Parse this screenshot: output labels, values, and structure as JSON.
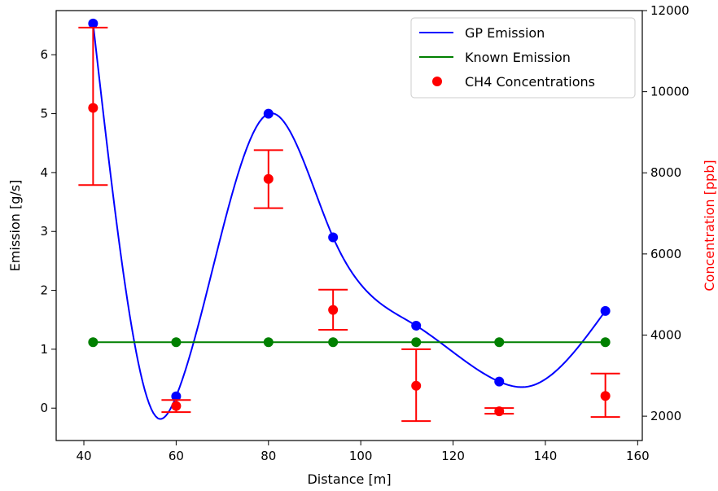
{
  "chart_data": {
    "type": "line",
    "xlabel": "Distance [m]",
    "ylabel_left": "Emission [g/s]",
    "ylabel_right": "Concentration [ppb]",
    "ylabel_right_color": "#ff0000",
    "xlim": [
      34,
      161
    ],
    "ylim_left": [
      -0.55,
      6.75
    ],
    "ylim_right": [
      1400,
      12000
    ],
    "x_ticks": [
      40,
      60,
      80,
      100,
      120,
      140,
      160
    ],
    "y_left_ticks": [
      0,
      1,
      2,
      3,
      4,
      5,
      6
    ],
    "y_right_ticks": [
      2000,
      4000,
      6000,
      8000,
      10000,
      12000
    ],
    "grid": false,
    "legend_position": "top-right",
    "series": [
      {
        "name": "GP Emission",
        "kind": "smooth-line-with-markers",
        "axis": "left",
        "color": "#0000ff",
        "x": [
          42,
          60,
          80,
          94,
          112,
          130,
          153
        ],
        "y": [
          6.53,
          0.2,
          5.0,
          2.9,
          1.4,
          0.45,
          1.65
        ],
        "curve_min": {
          "x": 56,
          "y": -0.17
        },
        "curve_min_between_last": {
          "x": 136.5,
          "y": 0.37
        }
      },
      {
        "name": "Known Emission",
        "kind": "line-with-markers",
        "axis": "left",
        "color": "#008000",
        "x": [
          42,
          60,
          80,
          94,
          112,
          130,
          153
        ],
        "y": [
          1.12,
          1.12,
          1.12,
          1.12,
          1.12,
          1.12,
          1.12
        ]
      },
      {
        "name": "CH4 Concentrations",
        "kind": "scatter-with-errorbars",
        "axis": "right",
        "color": "#ff0000",
        "x": [
          42,
          60,
          80,
          94,
          112,
          130,
          153
        ],
        "y": [
          9600,
          2250,
          7850,
          4620,
          2750,
          2120,
          2500
        ],
        "err_low": [
          7700,
          2100,
          7130,
          4130,
          1880,
          2060,
          1980
        ],
        "err_high": [
          11580,
          2400,
          8560,
          5120,
          3650,
          2200,
          3050
        ]
      }
    ]
  }
}
